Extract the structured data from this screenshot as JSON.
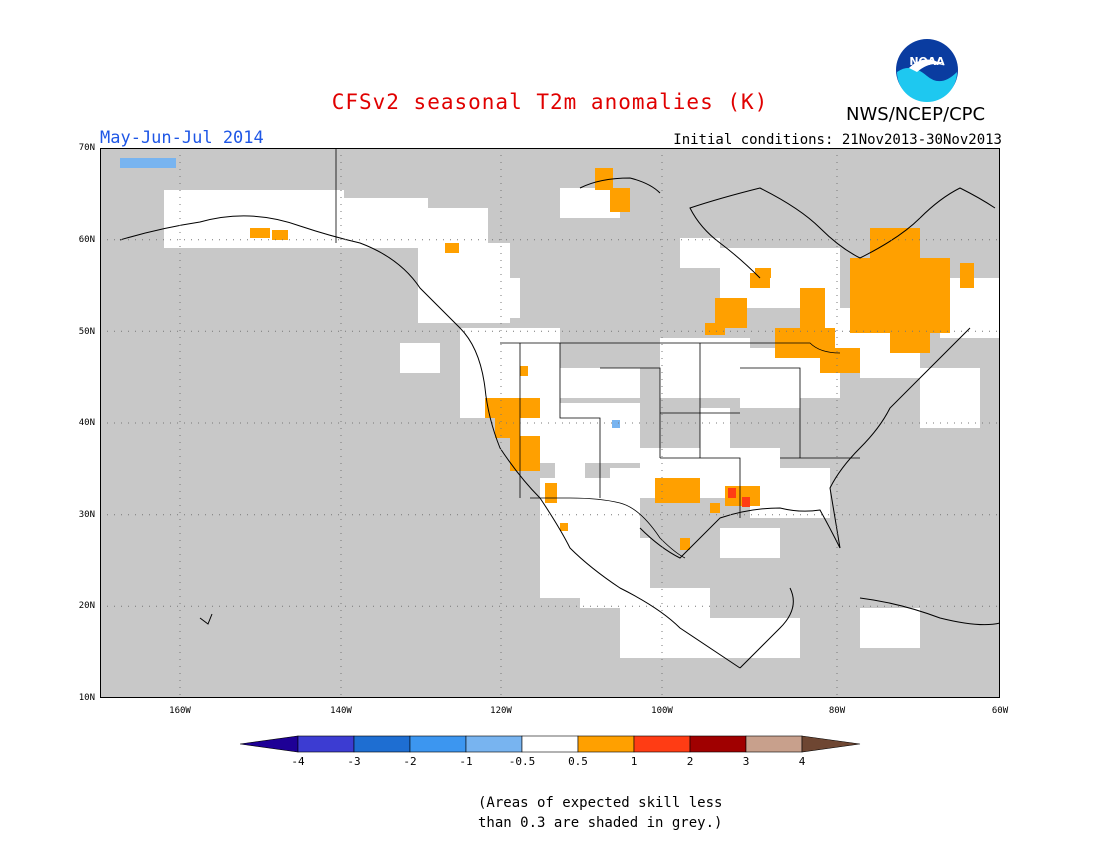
{
  "header": {
    "title": "CFSv2 seasonal T2m anomalies (K)",
    "season": "May-Jun-Jul 2014",
    "initial_conditions": "Initial conditions: 21Nov2013-30Nov2013",
    "agency": "NWS/NCEP/CPC",
    "logo_text": "NOAA"
  },
  "map": {
    "lat_labels": [
      "70N",
      "60N",
      "50N",
      "40N",
      "30N",
      "20N",
      "10N"
    ],
    "lon_labels": [
      "160W",
      "140W",
      "120W",
      "100W",
      "80W",
      "60W"
    ],
    "extent": {
      "lon_min": -172,
      "lon_max": -60,
      "lat_min": 10,
      "lat_max": 70
    },
    "colors": {
      "grey_mask": "#c8c8c8",
      "neutral": "#ffffff",
      "anom_0_5_to_1": "#ffa000",
      "anom_1_to_2": "#ff3c14",
      "anom_2_to_3": "#a00000",
      "anom_neg_1_to_neg_0_5": "#78b4f0"
    }
  },
  "colorbar": {
    "labels": [
      "-4",
      "-3",
      "-2",
      "-1",
      "-0.5",
      "0.5",
      "1",
      "2",
      "3",
      "4"
    ],
    "colors": [
      "#1e0096",
      "#3c3cd2",
      "#1e6ed2",
      "#3c96f0",
      "#78b4f0",
      "#ffffff",
      "#ffa000",
      "#ff3c14",
      "#a00000",
      "#c8a08c",
      "#6e4632"
    ]
  },
  "footnote": {
    "line1": "(Areas of expected skill less",
    "line2": "than 0.3 are shaded in grey.)"
  }
}
